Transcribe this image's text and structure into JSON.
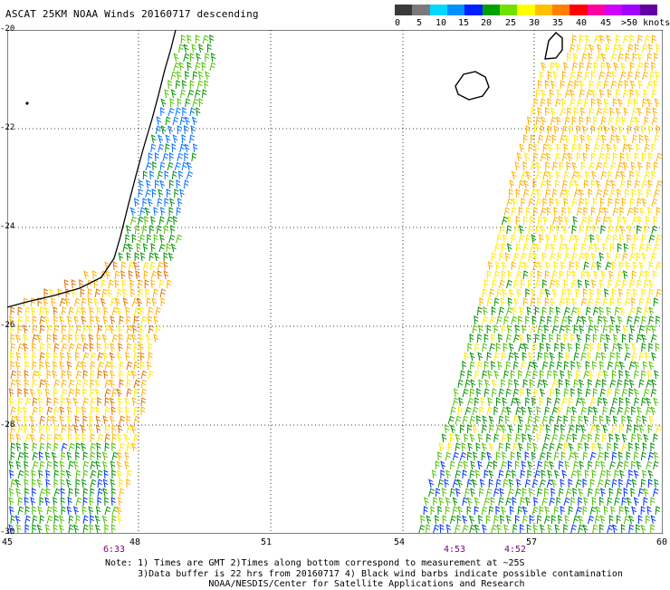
{
  "title": "ASCAT 25KM NOAA Winds 20160717 descending",
  "legend": {
    "labels": [
      "0",
      "5",
      "10",
      "15",
      "20",
      "25",
      "30",
      "35",
      "40",
      "45",
      ">50 knots"
    ],
    "colors": [
      "#3a3a3a",
      "#7a7a7a",
      "#00d8ff",
      "#0090ff",
      "#0020ff",
      "#00a000",
      "#70e000",
      "#ffff00",
      "#ffc000",
      "#ff8000",
      "#ff0000",
      "#ff00a0",
      "#d000ff",
      "#a000ff",
      "#6000a0"
    ]
  },
  "axes": {
    "lat_labels": [
      "-20",
      "-22",
      "-24",
      "-26",
      "-28",
      "-30"
    ],
    "lon_labels": [
      "45",
      "48",
      "51",
      "54",
      "57",
      "60"
    ]
  },
  "times": [
    {
      "label": "6:33"
    },
    {
      "label": "4:53"
    },
    {
      "label": "4:52"
    }
  ],
  "notes": [
    "Note: 1) Times are GMT 2)Times along bottom correspond to measurement at ~25S",
    "      3)Data buffer is 22 hrs from 20160717 4) Black wind barbs indicate possible contamination",
    "                   NOAA/NESDIS/Center for Satellite Applications and Research"
  ],
  "wind_colors": {
    "blue": "#0030ff",
    "cyan_blue": "#0070ff",
    "green": "#009000",
    "light_green": "#50c000",
    "yellow": "#ffe800",
    "orange": "#ffb000",
    "dark_orange": "#e07000"
  }
}
